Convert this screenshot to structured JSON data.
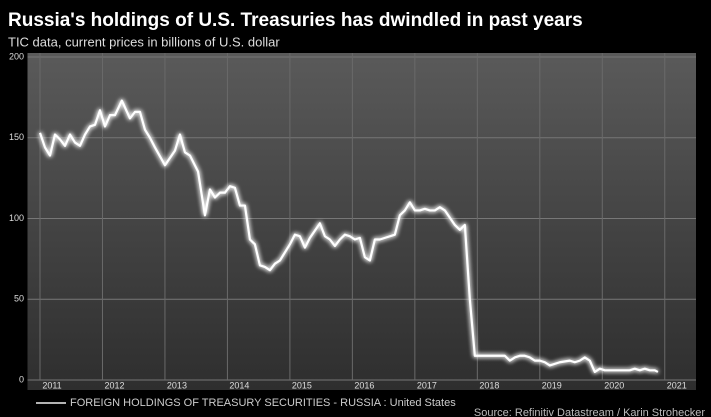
{
  "chart_data": {
    "type": "line",
    "title": "Russia's holdings of U.S. Treasuries has dwindled in past years",
    "subtitle": "TIC data, current prices in billions of U.S. dollar",
    "x": [
      2011.0,
      2011.08,
      2011.16,
      2011.24,
      2011.32,
      2011.4,
      2011.48,
      2011.56,
      2011.64,
      2011.72,
      2011.8,
      2011.88,
      2011.96,
      2012.04,
      2012.12,
      2012.2,
      2012.31,
      2012.44,
      2012.52,
      2012.6,
      2012.68,
      2012.76,
      2012.84,
      2013.0,
      2013.16,
      2013.24,
      2013.32,
      2013.4,
      2013.53,
      2013.64,
      2013.72,
      2013.8,
      2013.88,
      2013.96,
      2014.04,
      2014.12,
      2014.2,
      2014.28,
      2014.36,
      2014.44,
      2014.52,
      2014.6,
      2014.68,
      2014.76,
      2014.84,
      2015.0,
      2015.08,
      2015.16,
      2015.24,
      2015.32,
      2015.48,
      2015.56,
      2015.64,
      2015.72,
      2015.8,
      2015.88,
      2015.96,
      2016.04,
      2016.12,
      2016.2,
      2016.28,
      2016.36,
      2016.44,
      2016.52,
      2016.68,
      2016.76,
      2016.84,
      2016.92,
      2017.0,
      2017.08,
      2017.16,
      2017.24,
      2017.32,
      2017.4,
      2017.48,
      2017.64,
      2017.72,
      2017.8,
      2017.88,
      2017.96,
      2018.04,
      2018.2,
      2018.36,
      2018.44,
      2018.52,
      2018.6,
      2018.68,
      2018.76,
      2018.84,
      2018.92,
      2019.0,
      2019.08,
      2019.16,
      2019.32,
      2019.48,
      2019.56,
      2019.64,
      2019.72,
      2019.8,
      2019.88,
      2019.96,
      2020.04,
      2020.12,
      2020.28,
      2020.44,
      2020.52,
      2020.6,
      2020.68,
      2020.76,
      2020.84,
      2020.89
    ],
    "series": [
      {
        "name": "FOREIGN HOLDINGS OF TREASURY SECURITIES - RUSSIA : United States",
        "color": "#ffffff",
        "values": [
          153,
          144,
          139,
          152,
          149,
          145,
          152,
          147,
          145,
          152,
          157,
          158,
          167,
          157,
          164,
          164,
          173,
          162,
          166,
          166,
          155,
          150,
          144,
          133,
          142,
          152,
          141,
          139,
          129,
          102,
          118,
          113,
          116,
          116,
          120,
          119,
          108,
          108,
          87,
          84,
          71,
          70,
          68,
          72,
          74,
          84,
          90,
          89,
          82,
          88,
          97,
          89,
          87,
          83,
          87,
          90,
          89,
          87,
          88,
          76,
          74,
          87,
          87,
          88,
          90,
          102,
          105,
          110,
          105,
          105,
          106,
          105,
          105,
          107,
          105,
          96,
          93,
          96,
          50,
          15,
          15,
          15,
          15,
          15,
          12,
          14,
          15,
          15,
          14,
          12,
          12,
          11,
          9,
          11,
          12,
          11,
          12,
          14,
          12,
          5,
          7,
          6,
          6,
          6,
          6,
          7,
          6,
          7,
          6,
          6,
          5
        ]
      }
    ],
    "xlim": [
      2010.8,
      2021.5
    ],
    "ylim": [
      0,
      200
    ],
    "xticks": [
      2011,
      2012,
      2013,
      2014,
      2015,
      2016,
      2017,
      2018,
      2019,
      2020,
      2021
    ],
    "yticks": [
      0,
      50,
      100,
      150,
      200
    ],
    "grid": true,
    "legend": "bottom",
    "source": "Source: Refinitiv Datastream / Karin Strohecker"
  }
}
